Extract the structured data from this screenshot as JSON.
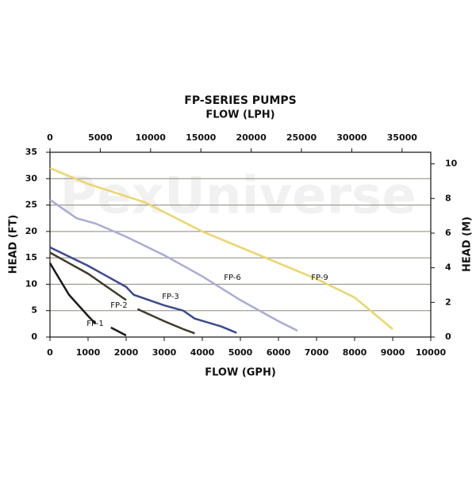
{
  "chart_data": {
    "type": "line",
    "title": "FP-SERIES PUMPS",
    "x2label": "FLOW (LPH)",
    "xlabel": "FLOW (GPH)",
    "ylabel": "HEAD (FT)",
    "y2label": "HEAD (M)",
    "watermark": "PexUniverse",
    "xlim": [
      0,
      10000
    ],
    "xticks": [
      0,
      1000,
      2000,
      3000,
      4000,
      5000,
      6000,
      7000,
      8000,
      9000,
      10000
    ],
    "x2lim": [
      0,
      37854
    ],
    "x2ticks": [
      0,
      5000,
      10000,
      15000,
      20000,
      25000,
      30000,
      35000
    ],
    "ylim": [
      0,
      35
    ],
    "yticks": [
      0,
      5,
      10,
      15,
      20,
      25,
      30,
      35
    ],
    "y2lim": [
      0,
      10.668
    ],
    "y2ticks": [
      0,
      2,
      4,
      6,
      8,
      10
    ],
    "grid": true,
    "series": [
      {
        "name": "FP-1",
        "color": "#1a1a1a",
        "x": [
          0,
          500,
          1000,
          1200,
          1400,
          1600,
          2000
        ],
        "values": [
          14,
          8,
          4,
          2.5,
          null,
          1.8,
          0.3
        ]
      },
      {
        "name": "FP-2",
        "color": "#3f3a2a",
        "x": [
          0,
          500,
          1000,
          1500,
          2000,
          2100,
          2300,
          3000,
          3500,
          3800
        ],
        "values": [
          16,
          14,
          12,
          9.5,
          7,
          null,
          5.3,
          3,
          1.5,
          0.7
        ]
      },
      {
        "name": "FP-3",
        "color": "#3b4a8c",
        "x": [
          0,
          1000,
          2000,
          2200,
          3000,
          3500,
          3800,
          4500,
          4900
        ],
        "values": [
          17,
          13.5,
          9.5,
          8,
          6,
          5,
          3.5,
          2,
          0.8
        ]
      },
      {
        "name": "FP-6",
        "color": "#a9acd6",
        "x": [
          0,
          700,
          1200,
          2000,
          3000,
          4000,
          5000,
          6000,
          6500
        ],
        "values": [
          26,
          22.5,
          21.5,
          19,
          15.5,
          11.5,
          7,
          3,
          1.2
        ]
      },
      {
        "name": "FP-9",
        "color": "#ecd56a",
        "x": [
          0,
          1000,
          2500,
          4000,
          5000,
          6000,
          7000,
          8000,
          9000
        ],
        "values": [
          32,
          29,
          25.5,
          20,
          17,
          14,
          11,
          7.5,
          1.5
        ]
      }
    ]
  }
}
